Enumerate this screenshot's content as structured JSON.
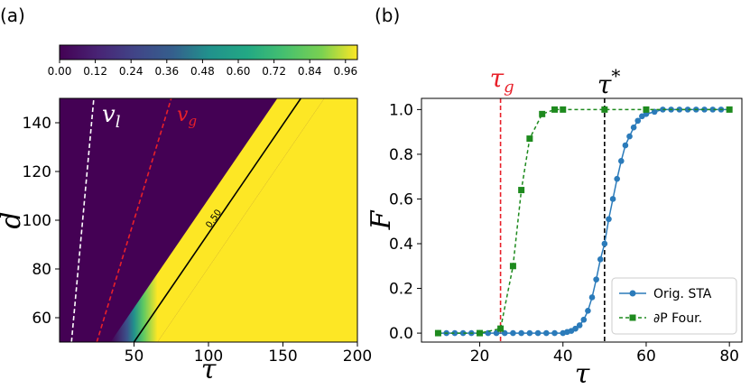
{
  "chart_data": [
    {
      "panel_label": "(a)",
      "type": "heatmap",
      "xlabel": "τ",
      "ylabel": "d",
      "xlim": [
        0,
        200
      ],
      "ylim": [
        50,
        150
      ],
      "x_ticks": [
        "50",
        "100",
        "150",
        "200"
      ],
      "y_ticks": [
        "60",
        "80",
        "100",
        "120",
        "140"
      ],
      "colormap": "viridis",
      "colorbar": {
        "range": [
          0,
          1
        ],
        "ticks": [
          "0.00",
          "0.12",
          "0.24",
          "0.36",
          "0.48",
          "0.60",
          "0.72",
          "0.84",
          "0.96"
        ],
        "placement": "top"
      },
      "contour": {
        "label": "0.50",
        "value": 0.5,
        "points": [
          [
            50,
            50
          ],
          [
            162,
            150
          ]
        ]
      },
      "lines": [
        {
          "name": "v_l",
          "label": "v",
          "subscript": "l",
          "color": "#ffffff",
          "style": "dashed",
          "points": [
            [
              8,
              50
            ],
            [
              23,
              150
            ]
          ]
        },
        {
          "name": "v_g",
          "label": "v",
          "subscript": "g",
          "color": "#e8202a",
          "style": "dashed",
          "points": [
            [
              25,
              50
            ],
            [
              75,
              150
            ]
          ]
        }
      ]
    },
    {
      "panel_label": "(b)",
      "type": "line",
      "xlabel": "τ",
      "ylabel": "F",
      "xlim": [
        6,
        83
      ],
      "ylim": [
        -0.04,
        1.05
      ],
      "x_ticks": [
        "20",
        "40",
        "60",
        "80"
      ],
      "y_ticks": [
        "0.0",
        "0.2",
        "0.4",
        "0.6",
        "0.8",
        "1.0"
      ],
      "legend": "lower-right",
      "vlines": [
        {
          "x": 25,
          "color": "#e8202a",
          "label": "τ",
          "subscript": "g"
        },
        {
          "x": 50,
          "color": "#000000",
          "label": "τ",
          "superscript": "*"
        }
      ],
      "series": [
        {
          "name": "Orig. STA",
          "color": "#2b7bba",
          "marker": "circle",
          "style": "solid",
          "x": [
            10,
            12,
            14,
            16,
            18,
            20,
            22,
            24,
            26,
            28,
            30,
            32,
            34,
            36,
            38,
            40,
            41,
            42,
            43,
            44,
            45,
            46,
            47,
            48,
            49,
            50,
            51,
            52,
            53,
            54,
            55,
            56,
            57,
            58,
            59,
            60,
            62,
            64,
            66,
            68,
            70,
            72,
            74,
            76,
            78,
            80
          ],
          "y": [
            0,
            0,
            0,
            0,
            0,
            0,
            0,
            0,
            0,
            0,
            0,
            0,
            0,
            0,
            0,
            0,
            0.005,
            0.01,
            0.02,
            0.035,
            0.06,
            0.1,
            0.16,
            0.24,
            0.33,
            0.4,
            0.51,
            0.6,
            0.69,
            0.77,
            0.84,
            0.88,
            0.92,
            0.95,
            0.97,
            0.98,
            0.99,
            1.0,
            1.0,
            1.0,
            1.0,
            1.0,
            1.0,
            1.0,
            1.0,
            1.0
          ]
        },
        {
          "name": "∂P Four.",
          "color": "#1e8a1e",
          "marker": "square",
          "style": "dashed",
          "x": [
            10,
            20,
            25,
            28,
            30,
            32,
            35,
            38,
            40,
            50,
            60,
            80
          ],
          "y": [
            0,
            0,
            0.02,
            0.3,
            0.64,
            0.87,
            0.98,
            1.0,
            1.0,
            1.0,
            1.0,
            1.0
          ]
        }
      ]
    }
  ]
}
